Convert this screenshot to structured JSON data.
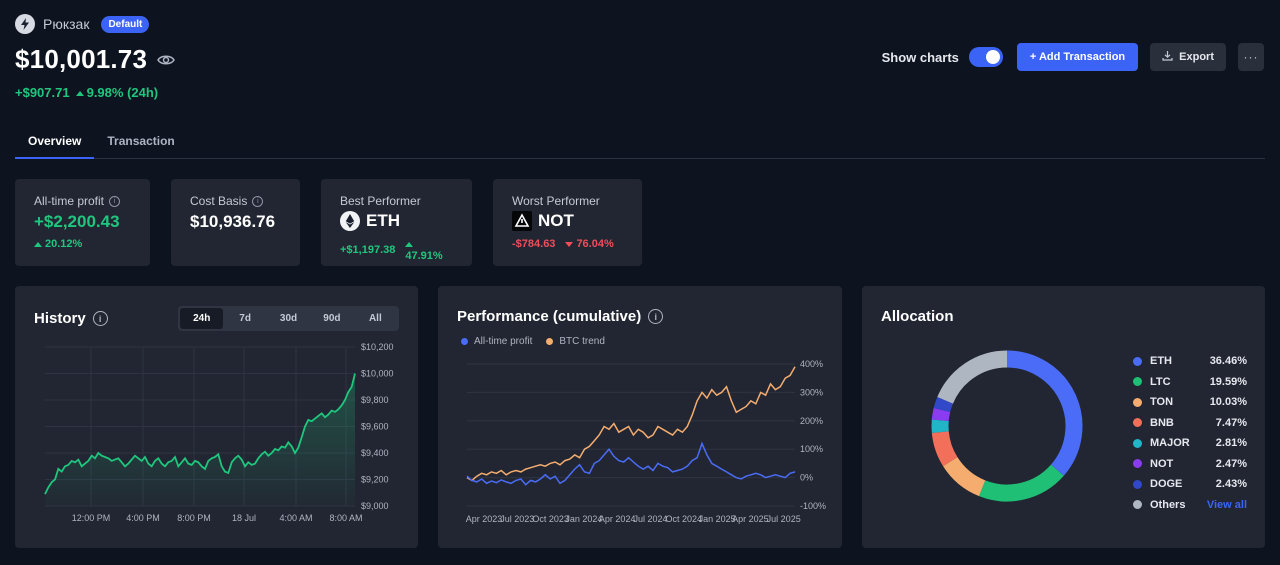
{
  "portfolio": {
    "name": "Рюкзак",
    "badge": "Default",
    "balance": "$10,001.73",
    "change_abs": "+$907.71",
    "change_pct": "9.98% (24h)"
  },
  "actions": {
    "show_charts_label": "Show charts",
    "show_charts_on": true,
    "add_transaction": "+ Add Transaction",
    "export": "Export",
    "more": "···"
  },
  "tabs": [
    {
      "label": "Overview",
      "active": true
    },
    {
      "label": "Transaction",
      "active": false
    }
  ],
  "stats": {
    "all_time_profit": {
      "label": "All-time profit",
      "value": "+$2,200.43",
      "pct": "20.12%"
    },
    "cost_basis": {
      "label": "Cost Basis",
      "value": "$10,936.76"
    },
    "best": {
      "label": "Best Performer",
      "coin": "ETH",
      "abs": "+$1,197.38",
      "pct": "47.91%"
    },
    "worst": {
      "label": "Worst Performer",
      "coin": "NOT",
      "abs": "-$784.63",
      "pct": "76.04%"
    }
  },
  "history": {
    "title": "History",
    "ranges": [
      "24h",
      "7d",
      "30d",
      "90d",
      "All"
    ],
    "active_range": "24h"
  },
  "performance": {
    "title": "Performance (cumulative)",
    "legend": [
      "All-time profit",
      "BTC trend"
    ]
  },
  "allocation": {
    "title": "Allocation",
    "view_all": "View all"
  },
  "colors": {
    "accent": "#3b63f5",
    "positive": "#1fc77e",
    "negative": "#ef4d5a",
    "btc_trend": "#f4ad6f"
  },
  "chart_data": [
    {
      "type": "area",
      "title": "History",
      "xlabel": "",
      "ylabel": "",
      "x_ticks": [
        "12:00 PM",
        "4:00 PM",
        "8:00 PM",
        "18 Jul",
        "4:00 AM",
        "8:00 AM"
      ],
      "y_ticks": [
        "$10,200",
        "$10,000",
        "$9,800",
        "$9,600",
        "$9,400",
        "$9,200",
        "$9,000"
      ],
      "ylim": [
        9000,
        10200
      ],
      "series": [
        {
          "values": [
            9090,
            9140,
            9180,
            9200,
            9280,
            9260,
            9300,
            9310,
            9340,
            9330,
            9350,
            9300,
            9320,
            9340,
            9380,
            9360,
            9400,
            9380,
            9370,
            9360,
            9340,
            9350,
            9360,
            9330,
            9300,
            9320,
            9350,
            9380,
            9360,
            9340,
            9370,
            9320,
            9300,
            9340,
            9360,
            9320,
            9300,
            9330,
            9340,
            9370,
            9300,
            9330,
            9360,
            9320,
            9310,
            9340,
            9330,
            9300,
            9280,
            9340,
            9360,
            9370,
            9390,
            9300,
            9260,
            9250,
            9330,
            9360,
            9380,
            9350,
            9300,
            9330,
            9310,
            9320,
            9360,
            9390,
            9410,
            9380,
            9400,
            9430,
            9420,
            9450,
            9440,
            9480,
            9450,
            9400,
            9440,
            9520,
            9600,
            9650,
            9640,
            9660,
            9680,
            9700,
            9670,
            9690,
            9720,
            9710,
            9730,
            9760,
            9800,
            9860,
            9900,
            10000
          ],
          "color": "#1fc77e"
        }
      ]
    },
    {
      "type": "line",
      "title": "Performance (cumulative)",
      "xlabel": "",
      "ylabel": "",
      "x_ticks": [
        "Apr 2023",
        "Jul 2023",
        "Oct 2023",
        "Jan 2024",
        "Apr 2024",
        "Jul 2024",
        "Oct 2024",
        "Jan 2025",
        "Apr 2025",
        "Jul 2025"
      ],
      "y_ticks": [
        "400%",
        "300%",
        "200%",
        "100%",
        "0%",
        "-100%"
      ],
      "ylim": [
        -100,
        400
      ],
      "series": [
        {
          "name": "All-time profit",
          "color": "#4a6cf7",
          "values": [
            5,
            -10,
            -15,
            -5,
            -20,
            -12,
            -18,
            -8,
            -15,
            -20,
            -10,
            -5,
            -25,
            -10,
            -15,
            -5,
            10,
            -5,
            5,
            -20,
            -10,
            10,
            30,
            45,
            20,
            15,
            50,
            60,
            80,
            100,
            75,
            60,
            55,
            70,
            55,
            40,
            30,
            40,
            25,
            50,
            40,
            35,
            20,
            25,
            30,
            40,
            60,
            70,
            120,
            80,
            50,
            40,
            30,
            20,
            10,
            0,
            -5,
            5,
            10,
            15,
            10,
            0,
            5,
            10,
            5,
            0,
            15,
            20
          ]
        },
        {
          "name": "BTC trend",
          "color": "#f4ad6f",
          "values": [
            0,
            -10,
            5,
            15,
            10,
            20,
            15,
            25,
            10,
            20,
            25,
            20,
            30,
            35,
            40,
            45,
            40,
            50,
            55,
            45,
            60,
            65,
            80,
            70,
            100,
            110,
            130,
            150,
            180,
            170,
            190,
            160,
            170,
            180,
            150,
            170,
            160,
            140,
            150,
            180,
            170,
            160,
            150,
            170,
            160,
            180,
            220,
            270,
            300,
            280,
            310,
            290,
            300,
            320,
            270,
            230,
            240,
            250,
            270,
            260,
            300,
            290,
            330,
            310,
            320,
            350,
            360,
            390
          ]
        }
      ]
    },
    {
      "type": "pie",
      "title": "Allocation",
      "slices": [
        {
          "label": "ETH",
          "pct_label": "36.46%",
          "value": 36.46,
          "color": "#4a6cf7"
        },
        {
          "label": "LTC",
          "pct_label": "19.59%",
          "value": 19.59,
          "color": "#1fbf75"
        },
        {
          "label": "TON",
          "pct_label": "10.03%",
          "value": 10.03,
          "color": "#f4ad6f"
        },
        {
          "label": "BNB",
          "pct_label": "7.47%",
          "value": 7.47,
          "color": "#f2705a"
        },
        {
          "label": "MAJOR",
          "pct_label": "2.81%",
          "value": 2.81,
          "color": "#21b5c8"
        },
        {
          "label": "NOT",
          "pct_label": "2.47%",
          "value": 2.47,
          "color": "#8a3df0"
        },
        {
          "label": "DOGE",
          "pct_label": "2.43%",
          "value": 2.43,
          "color": "#3148c9"
        },
        {
          "label": "Others",
          "pct_label": "",
          "value": 18.74,
          "color": "#aeb6c2"
        }
      ]
    }
  ]
}
